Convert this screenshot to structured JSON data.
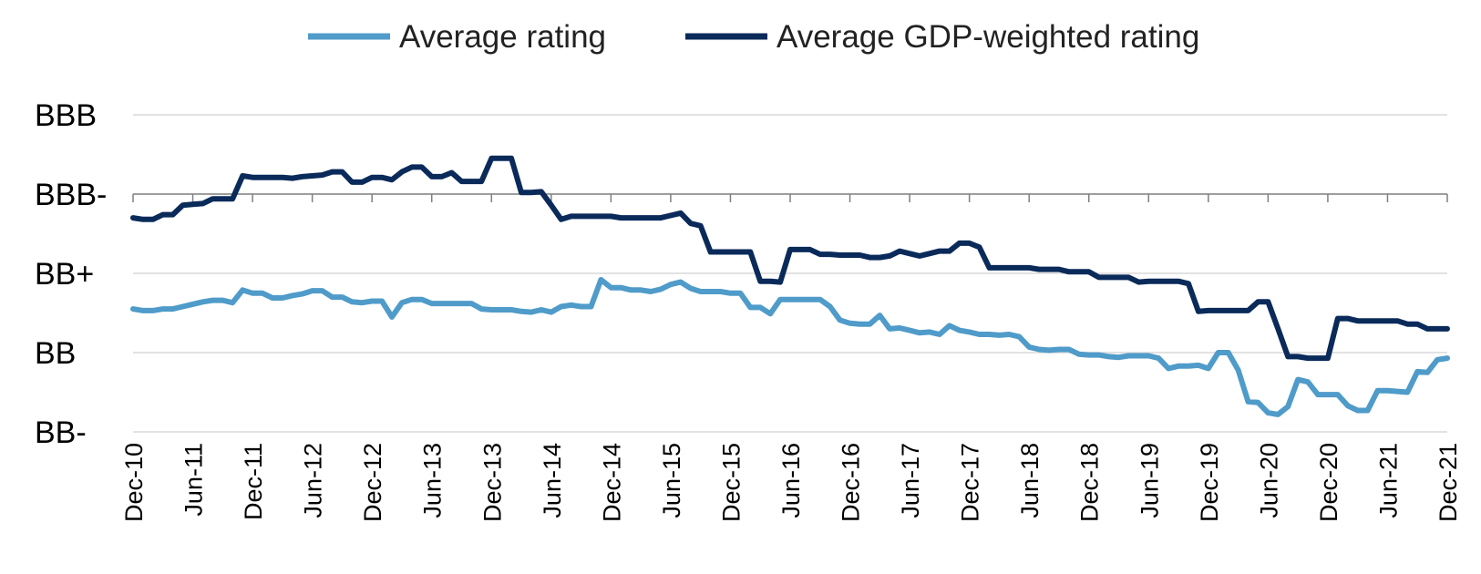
{
  "chart_data": {
    "type": "line",
    "title": "",
    "xlabel": "",
    "ylabel": "",
    "x_tick_labels": [
      "Dec-10",
      "Jun-11",
      "Dec-11",
      "Jun-12",
      "Dec-12",
      "Jun-13",
      "Dec-13",
      "Jun-14",
      "Dec-14",
      "Jun-15",
      "Dec-15",
      "Jun-16",
      "Dec-16",
      "Jun-17",
      "Dec-17",
      "Jun-18",
      "Dec-18",
      "Jun-19",
      "Dec-19",
      "Jun-20",
      "Dec-20",
      "Jun-21",
      "Dec-21"
    ],
    "x_range": [
      "2010-12",
      "2021-12"
    ],
    "y_categories": [
      "BB-",
      "BB",
      "BB+",
      "BBB-",
      "BBB"
    ],
    "y_range": [
      0,
      4
    ],
    "grid": "horizontal",
    "legend_position": "top",
    "series": [
      {
        "name": "Average rating",
        "color": "#4f9bc9",
        "points": [
          [
            "2010-12",
            1.55
          ],
          [
            "2011-01",
            1.53
          ],
          [
            "2011-02",
            1.53
          ],
          [
            "2011-03",
            1.55
          ],
          [
            "2011-04",
            1.55
          ],
          [
            "2011-05",
            1.58
          ],
          [
            "2011-06",
            1.61
          ],
          [
            "2011-07",
            1.64
          ],
          [
            "2011-08",
            1.66
          ],
          [
            "2011-09",
            1.66
          ],
          [
            "2011-10",
            1.63
          ],
          [
            "2011-11",
            1.79
          ],
          [
            "2011-12",
            1.75
          ],
          [
            "2012-01",
            1.75
          ],
          [
            "2012-02",
            1.69
          ],
          [
            "2012-03",
            1.69
          ],
          [
            "2012-04",
            1.72
          ],
          [
            "2012-05",
            1.74
          ],
          [
            "2012-06",
            1.78
          ],
          [
            "2012-07",
            1.78
          ],
          [
            "2012-08",
            1.7
          ],
          [
            "2012-09",
            1.7
          ],
          [
            "2012-10",
            1.64
          ],
          [
            "2012-11",
            1.63
          ],
          [
            "2012-12",
            1.65
          ],
          [
            "2013-01",
            1.65
          ],
          [
            "2013-02",
            1.45
          ],
          [
            "2013-03",
            1.63
          ],
          [
            "2013-04",
            1.67
          ],
          [
            "2013-05",
            1.67
          ],
          [
            "2013-06",
            1.62
          ],
          [
            "2013-07",
            1.62
          ],
          [
            "2013-08",
            1.62
          ],
          [
            "2013-09",
            1.62
          ],
          [
            "2013-10",
            1.62
          ],
          [
            "2013-11",
            1.55
          ],
          [
            "2013-12",
            1.54
          ],
          [
            "2014-01",
            1.54
          ],
          [
            "2014-02",
            1.54
          ],
          [
            "2014-03",
            1.52
          ],
          [
            "2014-04",
            1.51
          ],
          [
            "2014-05",
            1.54
          ],
          [
            "2014-06",
            1.51
          ],
          [
            "2014-07",
            1.58
          ],
          [
            "2014-08",
            1.6
          ],
          [
            "2014-09",
            1.58
          ],
          [
            "2014-10",
            1.58
          ],
          [
            "2014-11",
            1.92
          ],
          [
            "2014-12",
            1.82
          ],
          [
            "2015-01",
            1.82
          ],
          [
            "2015-02",
            1.79
          ],
          [
            "2015-03",
            1.79
          ],
          [
            "2015-04",
            1.77
          ],
          [
            "2015-05",
            1.8
          ],
          [
            "2015-06",
            1.86
          ],
          [
            "2015-07",
            1.89
          ],
          [
            "2015-08",
            1.81
          ],
          [
            "2015-09",
            1.77
          ],
          [
            "2015-10",
            1.77
          ],
          [
            "2015-11",
            1.77
          ],
          [
            "2015-12",
            1.75
          ],
          [
            "2016-01",
            1.75
          ],
          [
            "2016-02",
            1.57
          ],
          [
            "2016-03",
            1.57
          ],
          [
            "2016-04",
            1.49
          ],
          [
            "2016-05",
            1.67
          ],
          [
            "2016-06",
            1.67
          ],
          [
            "2016-07",
            1.67
          ],
          [
            "2016-08",
            1.67
          ],
          [
            "2016-09",
            1.67
          ],
          [
            "2016-10",
            1.58
          ],
          [
            "2016-11",
            1.41
          ],
          [
            "2016-12",
            1.37
          ],
          [
            "2017-01",
            1.36
          ],
          [
            "2017-02",
            1.36
          ],
          [
            "2017-03",
            1.47
          ],
          [
            "2017-04",
            1.3
          ],
          [
            "2017-05",
            1.31
          ],
          [
            "2017-06",
            1.28
          ],
          [
            "2017-07",
            1.25
          ],
          [
            "2017-08",
            1.26
          ],
          [
            "2017-09",
            1.23
          ],
          [
            "2017-10",
            1.34
          ],
          [
            "2017-11",
            1.28
          ],
          [
            "2017-12",
            1.26
          ],
          [
            "2018-01",
            1.23
          ],
          [
            "2018-02",
            1.23
          ],
          [
            "2018-03",
            1.22
          ],
          [
            "2018-04",
            1.23
          ],
          [
            "2018-05",
            1.2
          ],
          [
            "2018-06",
            1.07
          ],
          [
            "2018-07",
            1.04
          ],
          [
            "2018-08",
            1.03
          ],
          [
            "2018-09",
            1.04
          ],
          [
            "2018-10",
            1.04
          ],
          [
            "2018-11",
            0.98
          ],
          [
            "2018-12",
            0.97
          ],
          [
            "2019-01",
            0.97
          ],
          [
            "2019-02",
            0.95
          ],
          [
            "2019-03",
            0.94
          ],
          [
            "2019-04",
            0.96
          ],
          [
            "2019-05",
            0.96
          ],
          [
            "2019-06",
            0.96
          ],
          [
            "2019-07",
            0.93
          ],
          [
            "2019-08",
            0.8
          ],
          [
            "2019-09",
            0.83
          ],
          [
            "2019-10",
            0.83
          ],
          [
            "2019-11",
            0.84
          ],
          [
            "2019-12",
            0.8
          ],
          [
            "2020-01",
            1.0
          ],
          [
            "2020-02",
            1.0
          ],
          [
            "2020-03",
            0.78
          ],
          [
            "2020-04",
            0.38
          ],
          [
            "2020-05",
            0.37
          ],
          [
            "2020-06",
            0.24
          ],
          [
            "2020-07",
            0.22
          ],
          [
            "2020-08",
            0.32
          ],
          [
            "2020-09",
            0.66
          ],
          [
            "2020-10",
            0.63
          ],
          [
            "2020-11",
            0.47
          ],
          [
            "2020-12",
            0.47
          ],
          [
            "2021-01",
            0.47
          ],
          [
            "2021-02",
            0.33
          ],
          [
            "2021-03",
            0.27
          ],
          [
            "2021-04",
            0.27
          ],
          [
            "2021-05",
            0.52
          ],
          [
            "2021-06",
            0.52
          ],
          [
            "2021-07",
            0.51
          ],
          [
            "2021-08",
            0.5
          ],
          [
            "2021-09",
            0.76
          ],
          [
            "2021-10",
            0.75
          ],
          [
            "2021-11",
            0.91
          ],
          [
            "2021-12",
            0.93
          ]
        ]
      },
      {
        "name": "Average GDP-weighted rating",
        "color": "#0a2a5a",
        "points": [
          [
            "2010-12",
            2.7
          ],
          [
            "2011-01",
            2.68
          ],
          [
            "2011-02",
            2.68
          ],
          [
            "2011-03",
            2.74
          ],
          [
            "2011-04",
            2.74
          ],
          [
            "2011-05",
            2.86
          ],
          [
            "2011-06",
            2.87
          ],
          [
            "2011-07",
            2.88
          ],
          [
            "2011-08",
            2.94
          ],
          [
            "2011-09",
            2.94
          ],
          [
            "2011-10",
            2.94
          ],
          [
            "2011-11",
            3.23
          ],
          [
            "2011-12",
            3.21
          ],
          [
            "2012-01",
            3.21
          ],
          [
            "2012-02",
            3.21
          ],
          [
            "2012-03",
            3.21
          ],
          [
            "2012-04",
            3.2
          ],
          [
            "2012-05",
            3.22
          ],
          [
            "2012-06",
            3.23
          ],
          [
            "2012-07",
            3.24
          ],
          [
            "2012-08",
            3.28
          ],
          [
            "2012-09",
            3.28
          ],
          [
            "2012-10",
            3.15
          ],
          [
            "2012-11",
            3.15
          ],
          [
            "2012-12",
            3.21
          ],
          [
            "2013-01",
            3.21
          ],
          [
            "2013-02",
            3.18
          ],
          [
            "2013-03",
            3.28
          ],
          [
            "2013-04",
            3.34
          ],
          [
            "2013-05",
            3.34
          ],
          [
            "2013-06",
            3.22
          ],
          [
            "2013-07",
            3.22
          ],
          [
            "2013-08",
            3.27
          ],
          [
            "2013-09",
            3.16
          ],
          [
            "2013-10",
            3.16
          ],
          [
            "2013-11",
            3.16
          ],
          [
            "2013-12",
            3.45
          ],
          [
            "2014-01",
            3.45
          ],
          [
            "2014-02",
            3.45
          ],
          [
            "2014-03",
            3.02
          ],
          [
            "2014-04",
            3.02
          ],
          [
            "2014-05",
            3.03
          ],
          [
            "2014-06",
            2.86
          ],
          [
            "2014-07",
            2.68
          ],
          [
            "2014-08",
            2.72
          ],
          [
            "2014-09",
            2.72
          ],
          [
            "2014-10",
            2.72
          ],
          [
            "2014-11",
            2.72
          ],
          [
            "2014-12",
            2.72
          ],
          [
            "2015-01",
            2.7
          ],
          [
            "2015-02",
            2.7
          ],
          [
            "2015-03",
            2.7
          ],
          [
            "2015-04",
            2.7
          ],
          [
            "2015-05",
            2.7
          ],
          [
            "2015-06",
            2.73
          ],
          [
            "2015-07",
            2.76
          ],
          [
            "2015-08",
            2.63
          ],
          [
            "2015-09",
            2.6
          ],
          [
            "2015-10",
            2.27
          ],
          [
            "2015-11",
            2.27
          ],
          [
            "2015-12",
            2.27
          ],
          [
            "2016-01",
            2.27
          ],
          [
            "2016-02",
            2.27
          ],
          [
            "2016-03",
            1.9
          ],
          [
            "2016-04",
            1.9
          ],
          [
            "2016-05",
            1.89
          ],
          [
            "2016-06",
            2.3
          ],
          [
            "2016-07",
            2.3
          ],
          [
            "2016-08",
            2.3
          ],
          [
            "2016-09",
            2.24
          ],
          [
            "2016-10",
            2.24
          ],
          [
            "2016-11",
            2.23
          ],
          [
            "2016-12",
            2.23
          ],
          [
            "2017-01",
            2.23
          ],
          [
            "2017-02",
            2.2
          ],
          [
            "2017-03",
            2.2
          ],
          [
            "2017-04",
            2.22
          ],
          [
            "2017-05",
            2.28
          ],
          [
            "2017-06",
            2.25
          ],
          [
            "2017-07",
            2.22
          ],
          [
            "2017-08",
            2.25
          ],
          [
            "2017-09",
            2.28
          ],
          [
            "2017-10",
            2.28
          ],
          [
            "2017-11",
            2.38
          ],
          [
            "2017-12",
            2.38
          ],
          [
            "2018-01",
            2.33
          ],
          [
            "2018-02",
            2.07
          ],
          [
            "2018-03",
            2.07
          ],
          [
            "2018-04",
            2.07
          ],
          [
            "2018-05",
            2.07
          ],
          [
            "2018-06",
            2.07
          ],
          [
            "2018-07",
            2.05
          ],
          [
            "2018-08",
            2.05
          ],
          [
            "2018-09",
            2.05
          ],
          [
            "2018-10",
            2.02
          ],
          [
            "2018-11",
            2.02
          ],
          [
            "2018-12",
            2.02
          ],
          [
            "2019-01",
            1.95
          ],
          [
            "2019-02",
            1.95
          ],
          [
            "2019-03",
            1.95
          ],
          [
            "2019-04",
            1.95
          ],
          [
            "2019-05",
            1.89
          ],
          [
            "2019-06",
            1.9
          ],
          [
            "2019-07",
            1.9
          ],
          [
            "2019-08",
            1.9
          ],
          [
            "2019-09",
            1.9
          ],
          [
            "2019-10",
            1.87
          ],
          [
            "2019-11",
            1.52
          ],
          [
            "2019-12",
            1.53
          ],
          [
            "2020-01",
            1.53
          ],
          [
            "2020-02",
            1.53
          ],
          [
            "2020-03",
            1.53
          ],
          [
            "2020-04",
            1.53
          ],
          [
            "2020-05",
            1.64
          ],
          [
            "2020-06",
            1.64
          ],
          [
            "2020-07",
            1.3
          ],
          [
            "2020-08",
            0.95
          ],
          [
            "2020-09",
            0.95
          ],
          [
            "2020-10",
            0.93
          ],
          [
            "2020-11",
            0.93
          ],
          [
            "2020-12",
            0.93
          ],
          [
            "2021-01",
            1.43
          ],
          [
            "2021-02",
            1.43
          ],
          [
            "2021-03",
            1.4
          ],
          [
            "2021-04",
            1.4
          ],
          [
            "2021-05",
            1.4
          ],
          [
            "2021-06",
            1.4
          ],
          [
            "2021-07",
            1.4
          ],
          [
            "2021-08",
            1.36
          ],
          [
            "2021-09",
            1.36
          ],
          [
            "2021-10",
            1.3
          ],
          [
            "2021-11",
            1.3
          ],
          [
            "2021-12",
            1.3
          ]
        ]
      }
    ]
  }
}
